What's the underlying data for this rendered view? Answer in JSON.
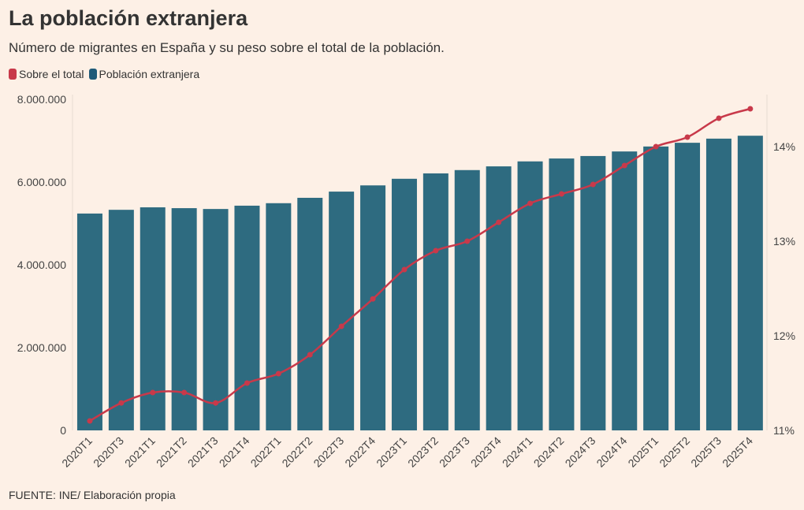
{
  "title": "La población extranjera",
  "subtitle": "Número de migrantes en España y su peso sobre el total de la población.",
  "source": "FUENTE: INE/ Elaboración propia",
  "colors": {
    "background": "#fdf0e6",
    "bars": "#2e6b80",
    "line": "#c8394a"
  },
  "chart_data": {
    "type": "bar+line",
    "categories": [
      "2020T1",
      "2020T3",
      "2021T1",
      "2021T2",
      "2021T3",
      "2021T4",
      "2022T1",
      "2022T2",
      "2022T3",
      "2022T4",
      "2023T1",
      "2023T2",
      "2023T3",
      "2023T4",
      "2024T1",
      "2024T2",
      "2024T3",
      "2024T4",
      "2025T1",
      "2025T2",
      "2025T3",
      "2025T4"
    ],
    "series": [
      {
        "name": "Sobre el total",
        "type": "line",
        "axis": "right",
        "values": [
          11.1,
          11.29,
          11.4,
          11.4,
          11.29,
          11.5,
          11.6,
          11.8,
          12.1,
          12.39,
          12.7,
          12.9,
          13.0,
          13.2,
          13.4,
          13.5,
          13.6,
          13.8,
          14.0,
          14.1,
          14.3,
          14.4
        ]
      },
      {
        "name": "Población extranjera",
        "type": "bar",
        "axis": "left",
        "values": [
          5240000,
          5330000,
          5390000,
          5370000,
          5350000,
          5430000,
          5490000,
          5620000,
          5770000,
          5920000,
          6080000,
          6210000,
          6290000,
          6380000,
          6500000,
          6570000,
          6630000,
          6740000,
          6860000,
          6950000,
          7050000,
          7120000
        ]
      }
    ],
    "left_axis": {
      "ylim": [
        0,
        8000000
      ],
      "ticks": [
        "0",
        "2.000.000",
        "4.000.000",
        "6.000.000",
        "8.000.000"
      ],
      "tick_values": [
        0,
        2000000,
        4000000,
        6000000,
        8000000
      ]
    },
    "right_axis": {
      "ylim": [
        11,
        14.5
      ],
      "ticks": [
        "11%",
        "12%",
        "13%",
        "14%"
      ],
      "tick_values": [
        11,
        12,
        13,
        14
      ]
    },
    "legend": {
      "placement": "top-left",
      "entries": [
        "Sobre el total",
        "Población extranjera"
      ]
    },
    "grid": false
  }
}
